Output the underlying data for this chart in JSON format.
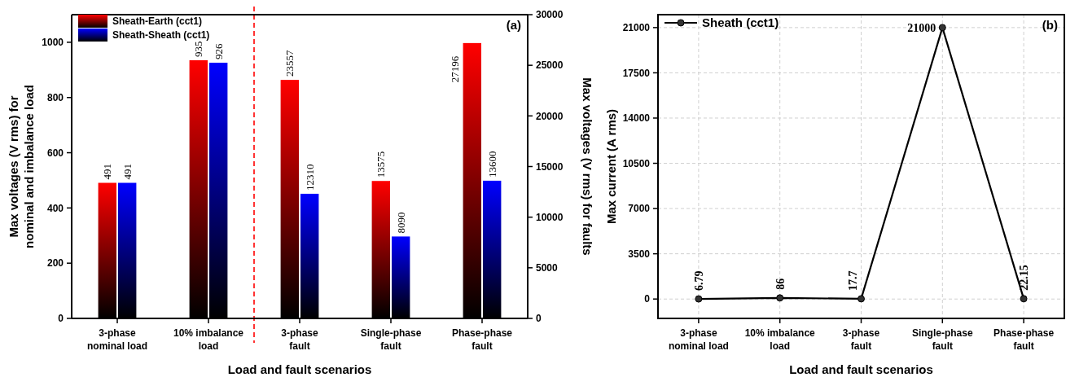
{
  "chart_data": [
    {
      "type": "bar",
      "xlabel": "Load and fault scenarios",
      "ylabel": "Max voltages (V rms) for nominal and imbalance load",
      "y2label": "Max voltages (V rms) for faults",
      "categories": [
        "3-phase nominal load",
        "10% imbalance load",
        "3-phase fault",
        "Single-phase fault",
        "Phase-phase fault"
      ],
      "series": [
        {
          "name": "Sheath-Earth (cct1)",
          "color": "#ff0000",
          "values": [
            491,
            935,
            null,
            null,
            null
          ]
        },
        {
          "name": "Sheath-Sheath (cct1)",
          "color": "#0000ff",
          "values": [
            491,
            926,
            null,
            null,
            null
          ]
        },
        {
          "color": "#ff0000",
          "axis": "y2",
          "values": [
            null,
            null,
            23557,
            13575,
            27196
          ]
        },
        {
          "color": "#0000ff",
          "axis": "y2",
          "values": [
            null,
            null,
            12310,
            8090,
            13600
          ]
        }
      ],
      "ylim": [
        0,
        1100
      ],
      "yticks": [
        0,
        200,
        400,
        600,
        800,
        1000
      ],
      "y2lim": [
        0,
        30000
      ],
      "y2ticks": [
        0,
        5000,
        10000,
        15000,
        20000,
        25000,
        30000
      ],
      "ref_lines": [
        {
          "axis": "x",
          "value": "3-phase fault",
          "color": "#ff0000",
          "line_style": "dashed"
        }
      ],
      "data_labels": true,
      "legend": "top left",
      "grid": false,
      "annotations": [
        "(a)"
      ]
    },
    {
      "type": "line",
      "xlabel": "Load and fault scenarios",
      "ylabel": "Max current (A rms)",
      "categories": [
        "3-phase nominal load",
        "10% imbalance load",
        "3-phase fault",
        "Single-phase fault",
        "Phase-phase fault"
      ],
      "series": [
        {
          "name": "Sheath (cct1)",
          "color": "#000000",
          "values": [
            6.79,
            86,
            17.7,
            21000,
            22.15
          ]
        }
      ],
      "ylim": [
        -1500,
        22000
      ],
      "yticks": [
        0,
        3500,
        7000,
        10500,
        14000,
        17500,
        21000
      ],
      "data_labels": true,
      "legend": "top left",
      "grid": true,
      "marker": "circle",
      "line_style": "solid",
      "annotations": [
        "(b)"
      ]
    }
  ]
}
